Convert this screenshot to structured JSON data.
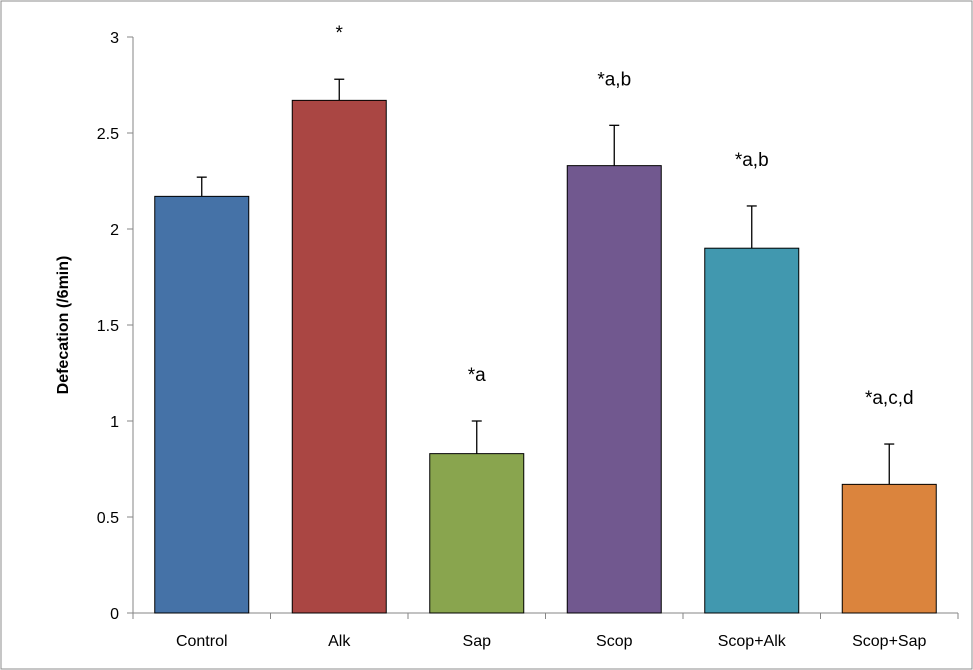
{
  "chart_data": {
    "type": "bar",
    "title": "",
    "xlabel": "",
    "ylabel": "Defecation (/6min)",
    "ylim": [
      0,
      3
    ],
    "yticks": [
      "0",
      "0.5",
      "1",
      "1.5",
      "2",
      "2.5",
      "3"
    ],
    "grid": false,
    "legend": "none",
    "categories": [
      "Control",
      "Alk",
      "Sap",
      "Scop",
      "Scop+Alk",
      "Scop+Sap"
    ],
    "values": [
      2.17,
      2.67,
      0.83,
      2.33,
      1.9,
      0.67
    ],
    "errors": [
      0.1,
      0.11,
      0.17,
      0.21,
      0.22,
      0.21
    ],
    "annotations": [
      "",
      "*",
      "*a",
      "*a,b",
      "*a,b",
      "*a,c,d"
    ],
    "colors": [
      "#4572A7",
      "#AA4643",
      "#89A54E",
      "#71588F",
      "#4198AF",
      "#DB843D"
    ],
    "bar_stroke": "#000000"
  }
}
